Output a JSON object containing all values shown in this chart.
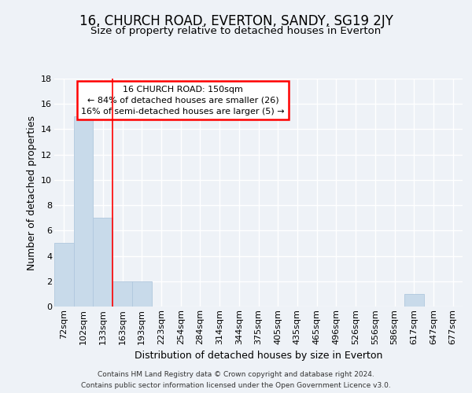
{
  "title": "16, CHURCH ROAD, EVERTON, SANDY, SG19 2JY",
  "subtitle": "Size of property relative to detached houses in Everton",
  "xlabel": "Distribution of detached houses by size in Everton",
  "ylabel": "Number of detached properties",
  "bin_labels": [
    "72sqm",
    "102sqm",
    "133sqm",
    "163sqm",
    "193sqm",
    "223sqm",
    "254sqm",
    "284sqm",
    "314sqm",
    "344sqm",
    "375sqm",
    "405sqm",
    "435sqm",
    "465sqm",
    "496sqm",
    "526sqm",
    "556sqm",
    "586sqm",
    "617sqm",
    "647sqm",
    "677sqm"
  ],
  "bar_values": [
    5,
    15,
    7,
    2,
    2,
    0,
    0,
    0,
    0,
    0,
    0,
    0,
    0,
    0,
    0,
    0,
    0,
    0,
    1,
    0,
    0
  ],
  "bar_color": "#c8daea",
  "bar_edge_color": "#b0c8de",
  "property_line_bin_index": 2,
  "ylim": [
    0,
    18
  ],
  "yticks": [
    0,
    2,
    4,
    6,
    8,
    10,
    12,
    14,
    16,
    18
  ],
  "annotation_line1": "16 CHURCH ROAD: 150sqm",
  "annotation_line2": "← 84% of detached houses are smaller (26)",
  "annotation_line3": "16% of semi-detached houses are larger (5) →",
  "title_fontsize": 12,
  "subtitle_fontsize": 9.5,
  "axis_label_fontsize": 9,
  "tick_fontsize": 8,
  "annotation_fontsize": 8,
  "footer_line1": "Contains HM Land Registry data © Crown copyright and database right 2024.",
  "footer_line2": "Contains public sector information licensed under the Open Government Licence v3.0.",
  "background_color": "#eef2f7",
  "plot_bg_color": "#eef2f7",
  "grid_color": "#ffffff"
}
